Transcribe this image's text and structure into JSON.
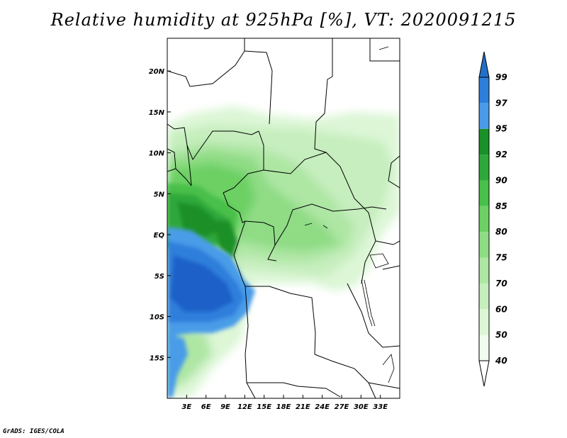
{
  "title": "Relative humidity at 925hPa [%], VT: 2020091215",
  "credit": "GrADS: IGES/COLA",
  "map": {
    "lon_range": [
      0,
      36
    ],
    "lat_range": [
      -20,
      24
    ],
    "x_ticks": [
      {
        "value": 3,
        "label": "3E"
      },
      {
        "value": 6,
        "label": "6E"
      },
      {
        "value": 9,
        "label": "9E"
      },
      {
        "value": 12,
        "label": "12E"
      },
      {
        "value": 15,
        "label": "15E"
      },
      {
        "value": 18,
        "label": "18E"
      },
      {
        "value": 21,
        "label": "21E"
      },
      {
        "value": 24,
        "label": "24E"
      },
      {
        "value": 27,
        "label": "27E"
      },
      {
        "value": 30,
        "label": "30E"
      },
      {
        "value": 33,
        "label": "33E"
      }
    ],
    "y_ticks": [
      {
        "value": 20,
        "label": "20N"
      },
      {
        "value": 15,
        "label": "15N"
      },
      {
        "value": 10,
        "label": "10N"
      },
      {
        "value": 5,
        "label": "5N"
      },
      {
        "value": 0,
        "label": "EQ"
      },
      {
        "value": -5,
        "label": "5S"
      },
      {
        "value": -10,
        "label": "10S"
      },
      {
        "value": -15,
        "label": "15S"
      }
    ]
  },
  "colorbar": {
    "levels": [
      "40",
      "50",
      "60",
      "70",
      "75",
      "80",
      "85",
      "90",
      "92",
      "95",
      "97",
      "99"
    ],
    "colors": [
      "#f0fcee",
      "#dcf6d6",
      "#c6eebe",
      "#aee6a4",
      "#8fdc85",
      "#6cd064",
      "#49c04a",
      "#2ea83a",
      "#1a9028",
      "#4a9ce8",
      "#2e7fdc",
      "#1e60c8",
      "#2270c8"
    ]
  }
}
